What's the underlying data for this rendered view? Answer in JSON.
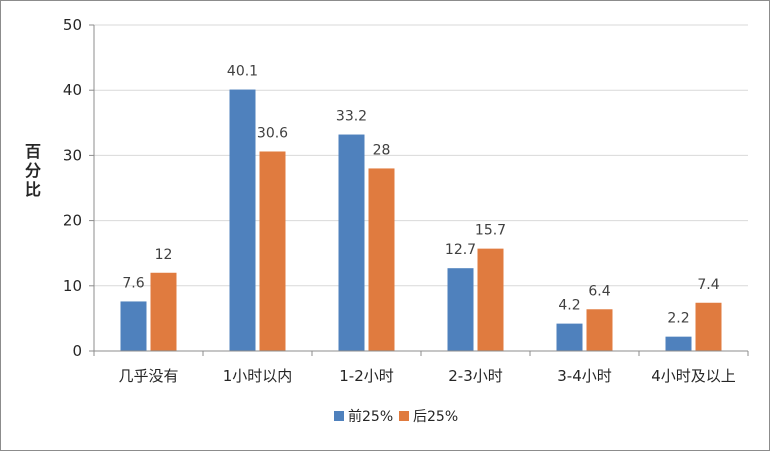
{
  "chart_data": {
    "type": "bar",
    "title": "",
    "xlabel": "",
    "ylabel": "百分比",
    "ylim": [
      0,
      50
    ],
    "yticks": [
      0,
      10,
      20,
      30,
      40,
      50
    ],
    "grid": true,
    "legend_position": "bottom",
    "categories": [
      "几乎没有",
      "1小时以内",
      "1-2小时",
      "2-3小时",
      "3-4小时",
      "4小时及以上"
    ],
    "series": [
      {
        "name": "前25%",
        "color": "#4f81bd",
        "values": [
          7.6,
          40.1,
          33.2,
          12.7,
          4.2,
          2.2
        ]
      },
      {
        "name": "后25%",
        "color": "#e07b3f",
        "values": [
          12,
          30.6,
          28,
          15.7,
          6.4,
          7.4
        ]
      }
    ]
  }
}
